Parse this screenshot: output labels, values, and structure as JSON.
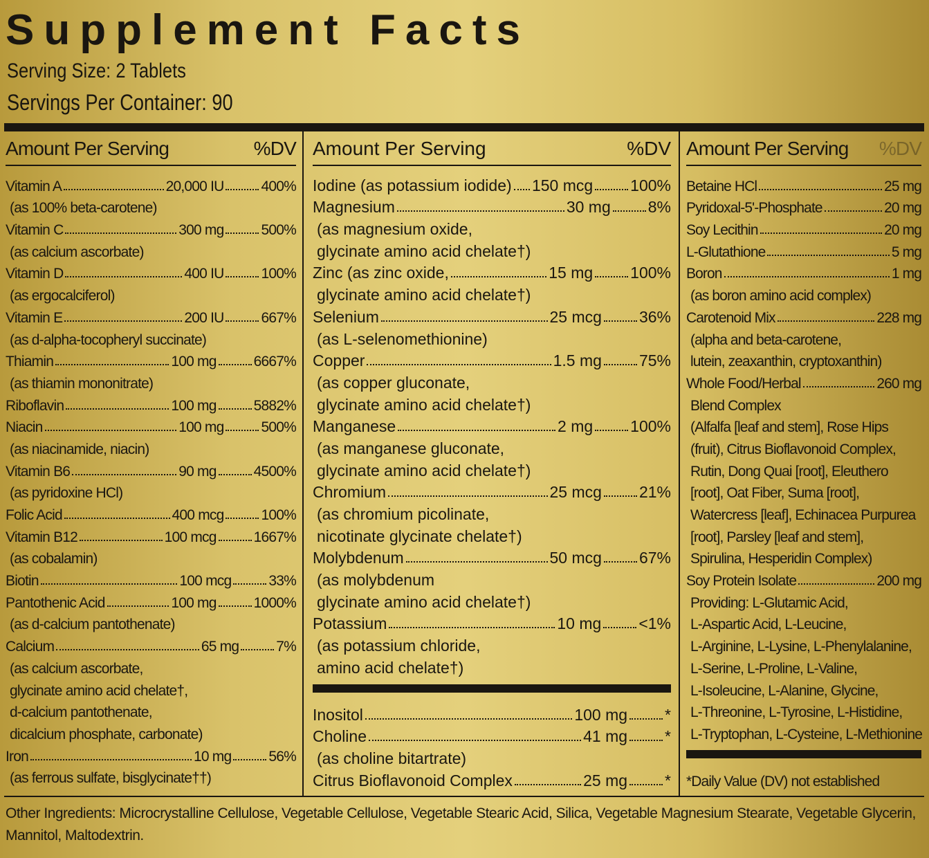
{
  "header": {
    "title": "Supplement Facts",
    "serving_size": "Serving Size: 2 Tablets",
    "servings_per_container": "Servings Per Container: 90"
  },
  "columns": [
    {
      "amount_header": "Amount Per Serving",
      "dv_header": "%DV",
      "rows": [
        {
          "name": "Vitamin A",
          "amount": "20,000 IU",
          "dv": "400%",
          "notes": [
            "(as 100% beta-carotene)"
          ]
        },
        {
          "name": "Vitamin C",
          "amount": "300 mg",
          "dv": "500%",
          "notes": [
            "(as calcium ascorbate)"
          ]
        },
        {
          "name": "Vitamin D",
          "amount": "400 IU",
          "dv": "100%",
          "notes": [
            "(as ergocalciferol)"
          ]
        },
        {
          "name": "Vitamin E",
          "amount": "200 IU",
          "dv": "667%",
          "notes": [
            "(as d-alpha-tocopheryl succinate)"
          ]
        },
        {
          "name": "Thiamin",
          "amount": "100 mg",
          "dv": "6667%",
          "notes": [
            "(as thiamin mononitrate)"
          ]
        },
        {
          "name": "Riboflavin",
          "amount": "100 mg",
          "dv": "5882%"
        },
        {
          "name": "Niacin",
          "amount": "100 mg",
          "dv": "500%",
          "notes": [
            "(as niacinamide, niacin)"
          ]
        },
        {
          "name": "Vitamin B6",
          "amount": "90 mg",
          "dv": "4500%",
          "notes": [
            "(as pyridoxine HCl)"
          ]
        },
        {
          "name": "Folic Acid",
          "amount": "400 mcg",
          "dv": "100%"
        },
        {
          "name": "Vitamin B12",
          "amount": "100 mcg",
          "dv": "1667%",
          "notes": [
            "(as cobalamin)"
          ]
        },
        {
          "name": "Biotin",
          "amount": "100 mcg",
          "dv": "33%"
        },
        {
          "name": "Pantothenic Acid",
          "amount": "100 mg",
          "dv": "1000%",
          "notes": [
            "(as d-calcium pantothenate)"
          ]
        },
        {
          "name": "Calcium",
          "amount": "65 mg",
          "dv": "7%",
          "notes": [
            "(as calcium ascorbate,",
            "glycinate amino acid chelate†,",
            "d-calcium pantothenate,",
            "dicalcium phosphate, carbonate)"
          ]
        },
        {
          "name": "Iron",
          "amount": "10 mg",
          "dv": "56%",
          "notes": [
            "(as ferrous sulfate, bisglycinate††)"
          ]
        }
      ]
    },
    {
      "amount_header": "Amount Per Serving",
      "dv_header": "%DV",
      "rows": [
        {
          "name": "Iodine (as potassium iodide)",
          "amount": "150 mcg",
          "dv": "100%"
        },
        {
          "name": "Magnesium",
          "amount": "30 mg",
          "dv": "8%",
          "notes": [
            "(as magnesium oxide,",
            "glycinate amino acid chelate†)"
          ]
        },
        {
          "name": "Zinc (as zinc oxide,",
          "amount": "15 mg",
          "dv": "100%",
          "notes": [
            "glycinate amino acid chelate†)"
          ]
        },
        {
          "name": "Selenium",
          "amount": "25 mcg",
          "dv": "36%",
          "notes": [
            "(as L-selenomethionine)"
          ]
        },
        {
          "name": "Copper",
          "amount": "1.5 mg",
          "dv": "75%",
          "notes": [
            "(as copper gluconate,",
            "glycinate amino acid chelate†)"
          ]
        },
        {
          "name": "Manganese",
          "amount": "2 mg",
          "dv": "100%",
          "notes": [
            "(as manganese gluconate,",
            "glycinate amino acid chelate†)"
          ]
        },
        {
          "name": "Chromium",
          "amount": "25 mcg",
          "dv": "21%",
          "notes": [
            "(as chromium picolinate,",
            "nicotinate glycinate chelate†)"
          ]
        },
        {
          "name": "Molybdenum",
          "amount": "50 mcg",
          "dv": "67%",
          "notes": [
            "(as molybdenum",
            "glycinate amino acid chelate†)"
          ]
        },
        {
          "name": "Potassium",
          "amount": "10 mg",
          "dv": "<1%",
          "notes": [
            "(as potassium chloride,",
            "amino acid chelate†)"
          ]
        }
      ],
      "extra_rows": [
        {
          "name": "Inositol",
          "amount": "100 mg",
          "dv": "*"
        },
        {
          "name": "Choline",
          "amount": "41 mg",
          "dv": "*",
          "notes": [
            "(as choline bitartrate)"
          ]
        },
        {
          "name": "Citrus Bioflavonoid Complex",
          "amount": "25 mg",
          "dv": "*"
        }
      ]
    },
    {
      "amount_header": "Amount Per Serving",
      "dv_header": "%DV",
      "rows": [
        {
          "name": "Betaine HCl",
          "amount": "25 mg"
        },
        {
          "name": "Pyridoxal-5'-Phosphate",
          "amount": "20 mg"
        },
        {
          "name": "Soy Lecithin",
          "amount": "20 mg"
        },
        {
          "name": "L-Glutathione",
          "amount": "5 mg"
        },
        {
          "name": "Boron",
          "amount": "1 mg",
          "notes": [
            "(as boron amino acid complex)"
          ]
        },
        {
          "name": "Carotenoid Mix",
          "amount": "228 mg",
          "notes": [
            "(alpha and beta-carotene,",
            "lutein, zeaxanthin, cryptoxanthin)"
          ]
        },
        {
          "name": "Whole Food/Herbal",
          "amount": "260 mg",
          "notes": [
            "Blend Complex",
            "(Alfalfa [leaf and stem], Rose Hips",
            "(fruit), Citrus Bioflavonoid Complex,",
            "Rutin, Dong Quai [root], Eleuthero",
            "[root], Oat Fiber, Suma [root],",
            "Watercress [leaf], Echinacea Purpurea",
            "[root], Parsley [leaf and stem],",
            "Spirulina, Hesperidin Complex)"
          ]
        },
        {
          "name": "Soy Protein Isolate",
          "amount": "200 mg",
          "notes": [
            "Providing: L-Glutamic Acid,",
            "L-Aspartic Acid, L-Leucine,",
            "L-Arginine, L-Lysine, L-Phenylalanine,",
            "L-Serine, L-Proline, L-Valine,",
            "L-Isoleucine, L-Alanine, Glycine,",
            "L-Threonine, L-Tyrosine, L-Histidine,",
            "L-Tryptophan, L-Cysteine, L-Methionine"
          ]
        }
      ],
      "footnote": "*Daily Value (DV) not established"
    }
  ],
  "other_ingredients": "Other Ingredients: Microcrystalline Cellulose, Vegetable Cellulose, Vegetable Stearic Acid, Silica, Vegetable Magnesium Stearate, Vegetable Glycerin, Mannitol, Maltodextrin."
}
